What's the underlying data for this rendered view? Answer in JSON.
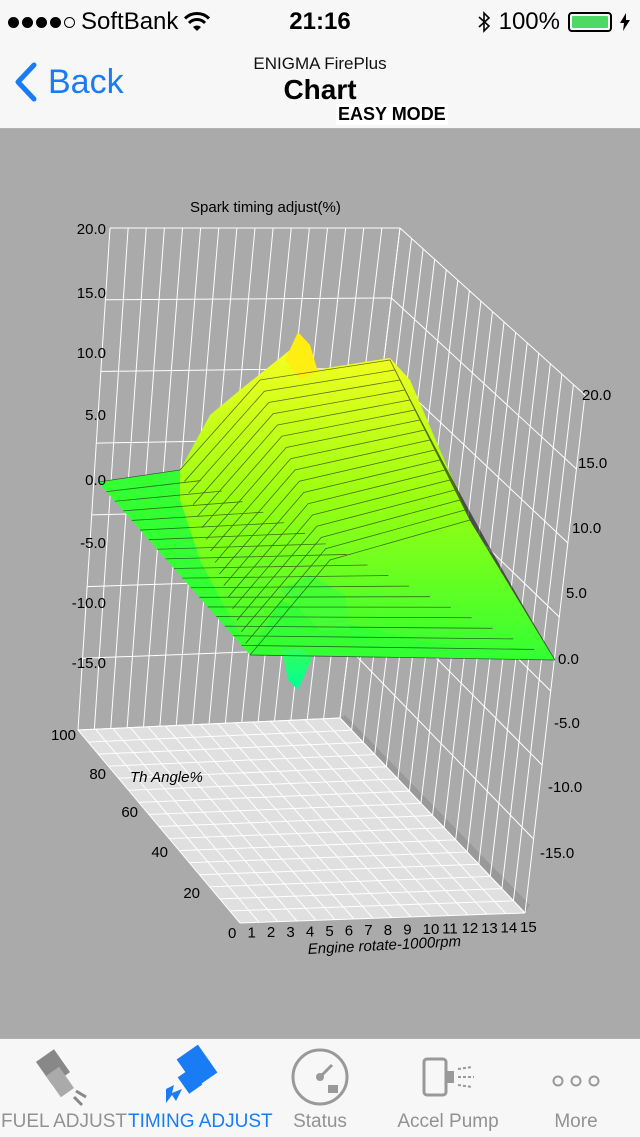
{
  "status_bar": {
    "carrier": "SoftBank",
    "time": "21:16",
    "battery": "100%"
  },
  "nav": {
    "back_label": "Back",
    "subtitle": "ENIGMA FirePlus",
    "title": "Chart",
    "mode": "EASY MODE"
  },
  "chart_data": {
    "type": "surface3d",
    "title": "Spark timing adjust(%)",
    "xlabel": "Engine rotate-1000rpm",
    "ylabel": "Th Angle%",
    "zlabel": "Spark timing adjust(%)",
    "x_ticks": [
      "0",
      "1",
      "2",
      "3",
      "4",
      "5",
      "6",
      "7",
      "8",
      "9",
      "10",
      "11",
      "12",
      "13",
      "14",
      "15"
    ],
    "y_ticks": [
      "20",
      "40",
      "60",
      "80",
      "100"
    ],
    "z_ticks_left": [
      "20.0",
      "15.0",
      "10.0",
      "5.0",
      "0.0",
      "-5.0",
      "-10.0",
      "-15.0"
    ],
    "z_ticks_right": [
      "20.0",
      "15.0",
      "10.0",
      "5.0",
      "0.0",
      "-5.0",
      "-10.0",
      "-15.0"
    ],
    "zlim": [
      -15,
      20
    ],
    "peak_value": 11,
    "colors": {
      "low": "#33ff33",
      "high": "#ffff22",
      "grid": "#ffffff",
      "floor": "#e6e6e6"
    }
  },
  "tabs": [
    {
      "label": "FUEL ADJUST",
      "icon": "fuel-injector-icon",
      "active": false
    },
    {
      "label": "TIMING ADJUST",
      "icon": "spark-plug-icon",
      "active": true
    },
    {
      "label": "Status",
      "icon": "gauge-icon",
      "active": false
    },
    {
      "label": "Accel Pump",
      "icon": "accel-pump-icon",
      "active": false
    },
    {
      "label": "More",
      "icon": "more-dots-icon",
      "active": false
    }
  ]
}
